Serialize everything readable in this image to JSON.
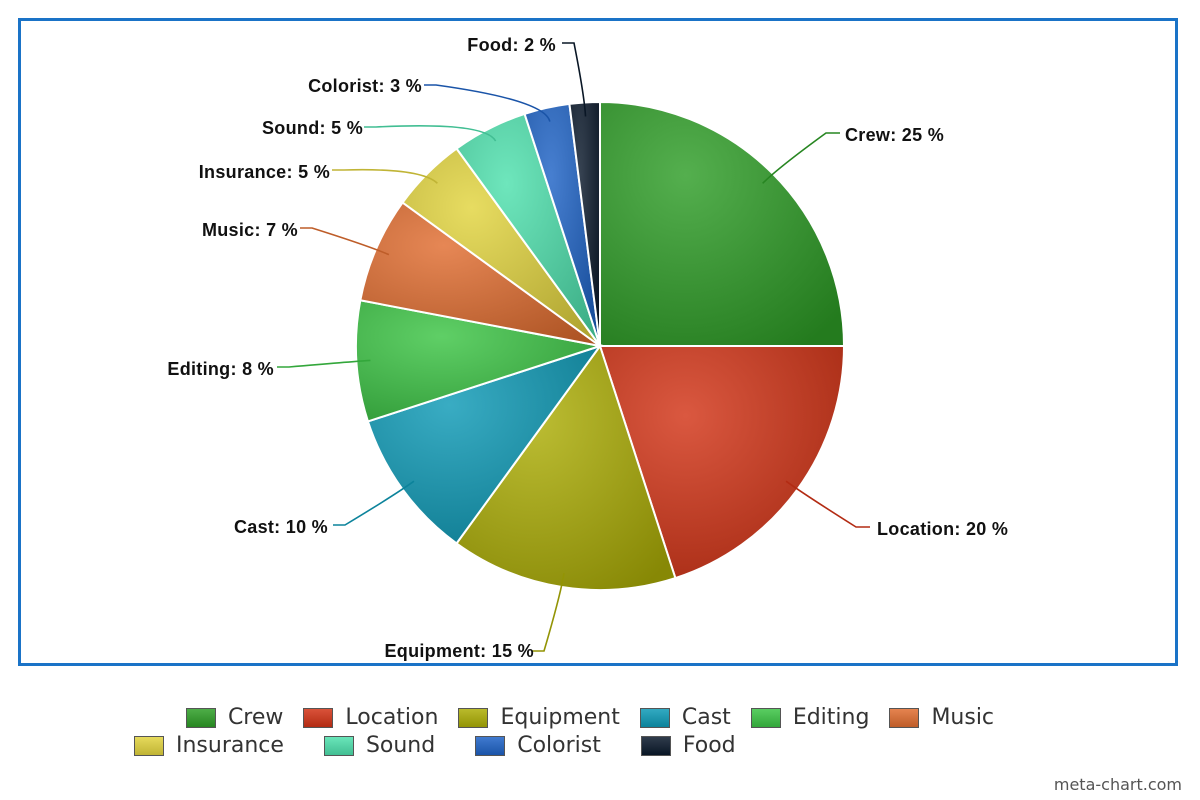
{
  "chart_data": {
    "type": "pie",
    "title": "",
    "slices": [
      {
        "name": "Crew",
        "value": 25,
        "label": "Crew: 25 %",
        "color": "#2e9e27"
      },
      {
        "name": "Location",
        "value": 20,
        "label": "Location: 20 %",
        "color": "#d23316"
      },
      {
        "name": "Equipment",
        "value": 15,
        "label": "Equipment: 15 %",
        "color": "#adae06"
      },
      {
        "name": "Cast",
        "value": 10,
        "label": "Cast: 10 %",
        "color": "#0e9ab6"
      },
      {
        "name": "Editing",
        "value": 8,
        "label": "Editing: 8 %",
        "color": "#3cc445"
      },
      {
        "name": "Music",
        "value": 7,
        "label": "Music: 7 %",
        "color": "#e06d30"
      },
      {
        "name": "Insurance",
        "value": 5,
        "label": "Insurance: 5 %",
        "color": "#e2d43e"
      },
      {
        "name": "Sound",
        "value": 5,
        "label": "Sound: 5 %",
        "color": "#4ee0ad"
      },
      {
        "name": "Colorist",
        "value": 3,
        "label": "Colorist: 3 %",
        "color": "#1e63c6"
      },
      {
        "name": "Food",
        "value": 2,
        "label": "Food: 2 %",
        "color": "#0b1a2c"
      }
    ],
    "legend_position": "bottom"
  },
  "watermark": "meta-chart.com"
}
